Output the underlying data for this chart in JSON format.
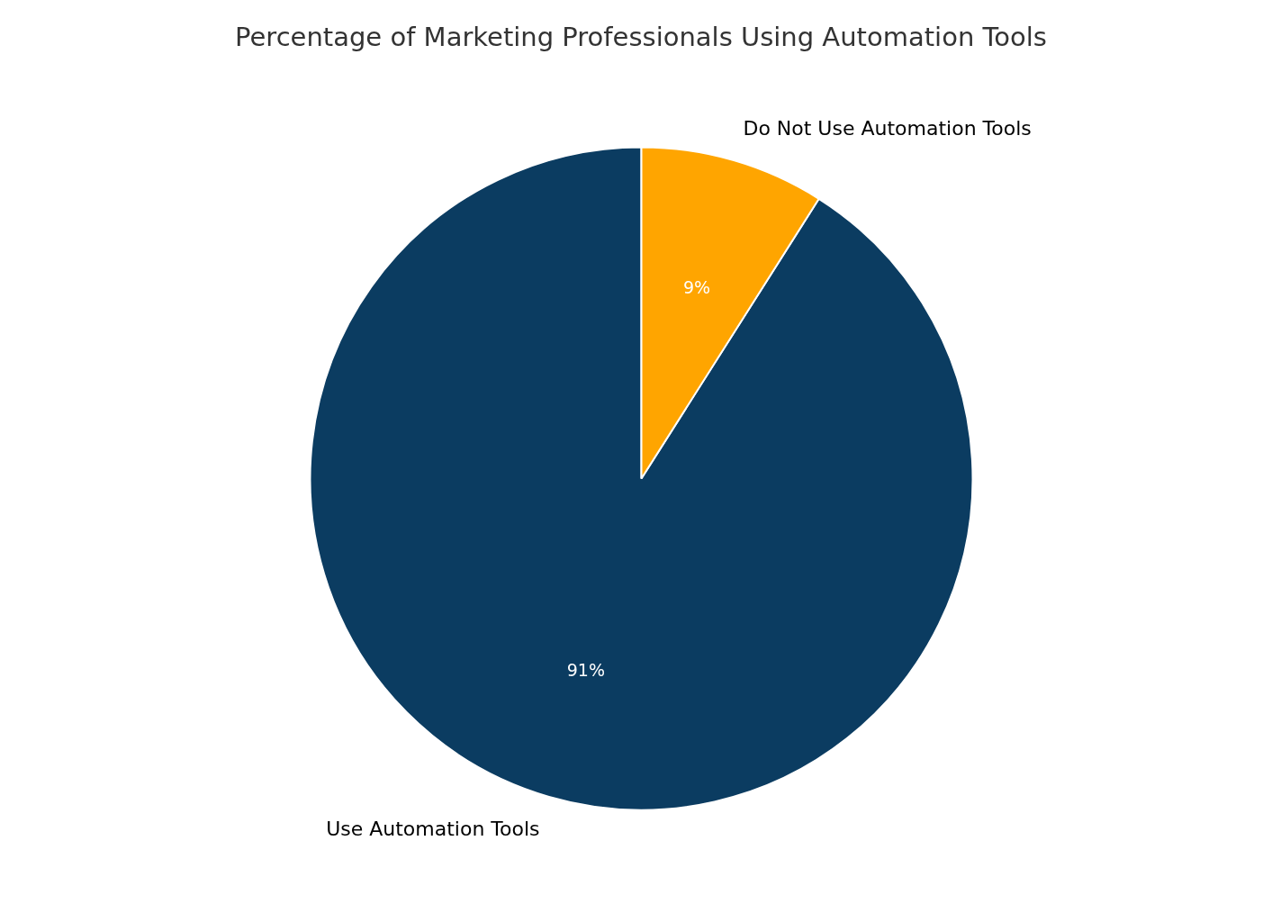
{
  "chart_data": {
    "type": "pie",
    "title": "Percentage of Marketing Professionals Using Automation Tools",
    "categories": [
      "Use Automation Tools",
      "Do Not Use Automation Tools"
    ],
    "values": [
      91,
      9
    ],
    "colors": [
      "#0b3c61",
      "#ffa500"
    ],
    "value_labels": [
      "91%",
      "9%"
    ]
  }
}
